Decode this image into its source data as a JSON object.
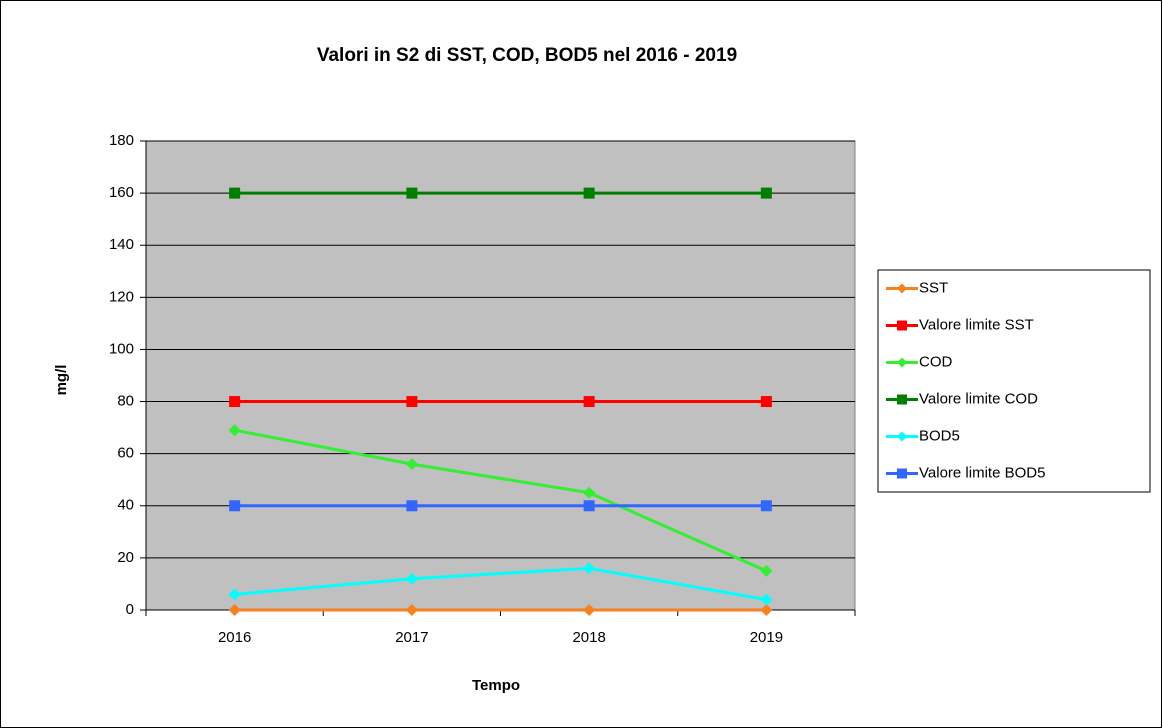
{
  "chart_data": {
    "type": "line",
    "title": "Valori in S2 di SST, COD, BOD5 nel 2016 - 2019",
    "x_label": "Tempo",
    "y_label": "mg/l",
    "categories": [
      "2016",
      "2017",
      "2018",
      "2019"
    ],
    "series": [
      {
        "name": "SST",
        "color": "#f7811e",
        "marker": "diamond",
        "values": [
          0,
          0,
          0,
          0
        ]
      },
      {
        "name": "Valore limite SST",
        "color": "#ff0000",
        "marker": "square",
        "values": [
          80,
          80,
          80,
          80
        ]
      },
      {
        "name": "COD",
        "color": "#33ee33",
        "marker": "diamond",
        "values": [
          69,
          56,
          45,
          15
        ]
      },
      {
        "name": "Valore limite COD",
        "color": "#008000",
        "marker": "square",
        "values": [
          160,
          160,
          160,
          160
        ]
      },
      {
        "name": "BOD5",
        "color": "#00ffff",
        "marker": "diamond",
        "values": [
          6,
          12,
          16,
          4
        ]
      },
      {
        "name": "Valore limite BOD5",
        "color": "#3366ff",
        "marker": "square",
        "values": [
          40,
          40,
          40,
          40
        ]
      }
    ],
    "ylim": [
      0,
      180
    ],
    "yticks": [
      0,
      20,
      40,
      60,
      80,
      100,
      120,
      140,
      160,
      180
    ],
    "grid": true,
    "legend": "right",
    "plot_background": "#c0c0c0"
  }
}
